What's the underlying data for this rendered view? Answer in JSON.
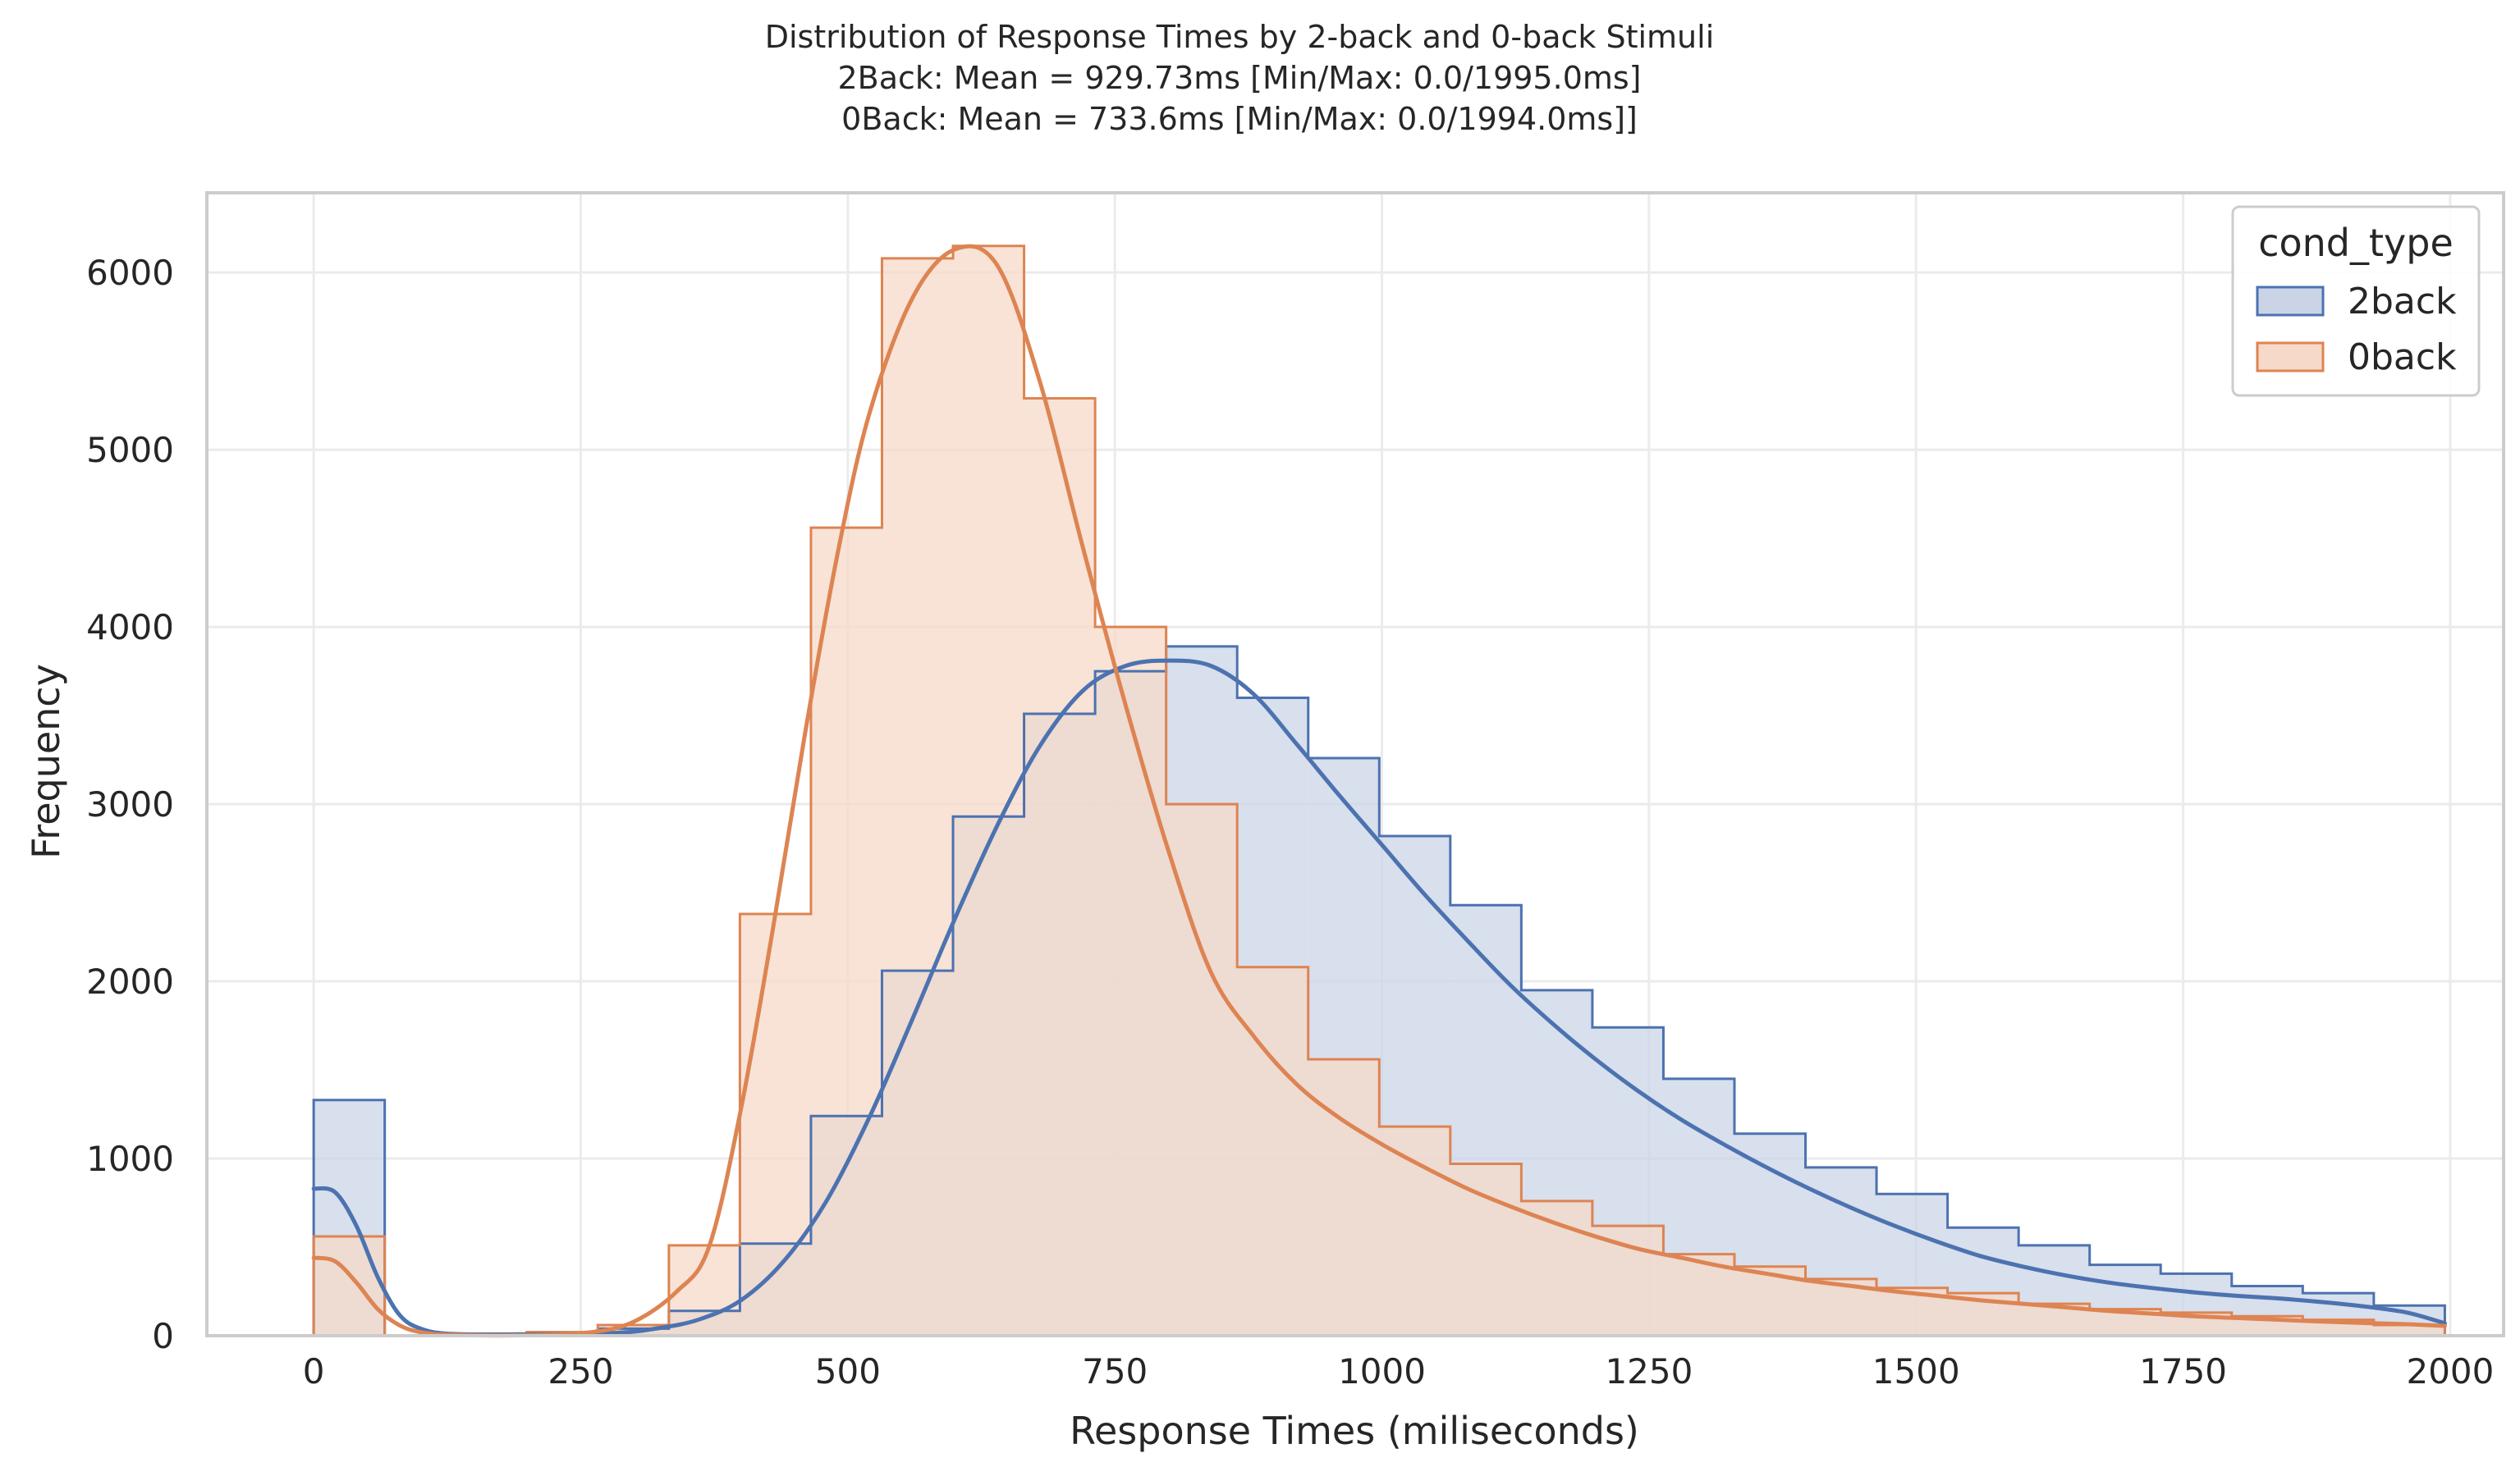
{
  "chart_data": {
    "type": "histogram",
    "title_lines": [
      "Distribution of Response Times by 2-back and 0-back Stimuli",
      "2Back: Mean = 929.73ms [Min/Max: 0.0/1995.0ms]",
      "0Back: Mean = 733.6ms [Min/Max: 0.0/1994.0ms]]"
    ],
    "xlabel": "Response Times (miliseconds)",
    "ylabel": "Frequency",
    "xlim": [
      -100,
      2050
    ],
    "ylim": [
      0,
      6450
    ],
    "xticks": [
      0,
      250,
      500,
      750,
      1000,
      1250,
      1500,
      1750,
      2000
    ],
    "yticks": [
      0,
      1000,
      2000,
      3000,
      4000,
      5000,
      6000
    ],
    "grid": true,
    "legend": {
      "title": "cond_type",
      "placement": "top-right"
    },
    "bin_edges": [
      0,
      66.5,
      133,
      199.5,
      266,
      332.5,
      399,
      465.5,
      532,
      598.5,
      665,
      731.5,
      798,
      864.5,
      931,
      997.5,
      1064,
      1130.5,
      1197,
      1263.5,
      1330,
      1396.5,
      1463,
      1529.5,
      1596,
      1662.5,
      1729,
      1795.5,
      1862,
      1928.5,
      1995
    ],
    "series": [
      {
        "name": "2back",
        "line_color": "#4c72b0",
        "fill_color": "#cbd4e7",
        "counts": [
          1330,
          0,
          0,
          0,
          40,
          140,
          520,
          1240,
          2060,
          2930,
          3510,
          3750,
          3890,
          3600,
          3260,
          2820,
          2430,
          1950,
          1740,
          1450,
          1140,
          950,
          800,
          610,
          510,
          400,
          350,
          280,
          240,
          170
        ],
        "kde": [
          [
            0,
            830
          ],
          [
            20,
            810
          ],
          [
            40,
            620
          ],
          [
            60,
            330
          ],
          [
            80,
            120
          ],
          [
            100,
            40
          ],
          [
            130,
            10
          ],
          [
            200,
            8
          ],
          [
            280,
            15
          ],
          [
            320,
            40
          ],
          [
            360,
            90
          ],
          [
            400,
            200
          ],
          [
            440,
            420
          ],
          [
            480,
            760
          ],
          [
            520,
            1230
          ],
          [
            560,
            1780
          ],
          [
            600,
            2350
          ],
          [
            640,
            2880
          ],
          [
            680,
            3330
          ],
          [
            720,
            3640
          ],
          [
            760,
            3780
          ],
          [
            800,
            3810
          ],
          [
            840,
            3780
          ],
          [
            880,
            3620
          ],
          [
            920,
            3340
          ],
          [
            960,
            3050
          ],
          [
            1000,
            2770
          ],
          [
            1040,
            2490
          ],
          [
            1080,
            2230
          ],
          [
            1120,
            1980
          ],
          [
            1160,
            1760
          ],
          [
            1200,
            1560
          ],
          [
            1240,
            1380
          ],
          [
            1280,
            1220
          ],
          [
            1320,
            1080
          ],
          [
            1360,
            950
          ],
          [
            1400,
            830
          ],
          [
            1440,
            720
          ],
          [
            1480,
            620
          ],
          [
            1520,
            530
          ],
          [
            1560,
            450
          ],
          [
            1600,
            390
          ],
          [
            1640,
            340
          ],
          [
            1680,
            300
          ],
          [
            1720,
            270
          ],
          [
            1760,
            245
          ],
          [
            1800,
            225
          ],
          [
            1840,
            210
          ],
          [
            1880,
            190
          ],
          [
            1920,
            165
          ],
          [
            1960,
            130
          ],
          [
            1995,
            70
          ]
        ]
      },
      {
        "name": "0back",
        "line_color": "#dd8452",
        "fill_color": "#f6d9c8",
        "counts": [
          560,
          0,
          0,
          20,
          60,
          510,
          2380,
          4560,
          6080,
          6150,
          5290,
          4000,
          3000,
          2080,
          1560,
          1180,
          970,
          760,
          620,
          460,
          390,
          320,
          270,
          240,
          180,
          150,
          130,
          110,
          90,
          60
        ],
        "kde": [
          [
            0,
            440
          ],
          [
            20,
            420
          ],
          [
            40,
            300
          ],
          [
            60,
            150
          ],
          [
            80,
            60
          ],
          [
            100,
            20
          ],
          [
            130,
            5
          ],
          [
            200,
            3
          ],
          [
            260,
            20
          ],
          [
            300,
            80
          ],
          [
            340,
            250
          ],
          [
            370,
            500
          ],
          [
            400,
            1280
          ],
          [
            430,
            2300
          ],
          [
            460,
            3400
          ],
          [
            490,
            4400
          ],
          [
            520,
            5200
          ],
          [
            560,
            5850
          ],
          [
            600,
            6130
          ],
          [
            640,
            6040
          ],
          [
            680,
            5380
          ],
          [
            720,
            4450
          ],
          [
            760,
            3560
          ],
          [
            800,
            2740
          ],
          [
            840,
            2050
          ],
          [
            880,
            1690
          ],
          [
            920,
            1420
          ],
          [
            960,
            1230
          ],
          [
            1000,
            1080
          ],
          [
            1040,
            950
          ],
          [
            1080,
            830
          ],
          [
            1120,
            730
          ],
          [
            1160,
            640
          ],
          [
            1200,
            560
          ],
          [
            1240,
            490
          ],
          [
            1280,
            440
          ],
          [
            1320,
            390
          ],
          [
            1360,
            350
          ],
          [
            1400,
            310
          ],
          [
            1440,
            280
          ],
          [
            1480,
            250
          ],
          [
            1520,
            225
          ],
          [
            1560,
            200
          ],
          [
            1600,
            180
          ],
          [
            1640,
            160
          ],
          [
            1680,
            140
          ],
          [
            1720,
            125
          ],
          [
            1760,
            110
          ],
          [
            1800,
            100
          ],
          [
            1840,
            90
          ],
          [
            1880,
            80
          ],
          [
            1920,
            72
          ],
          [
            1960,
            65
          ],
          [
            1995,
            55
          ]
        ]
      }
    ]
  }
}
